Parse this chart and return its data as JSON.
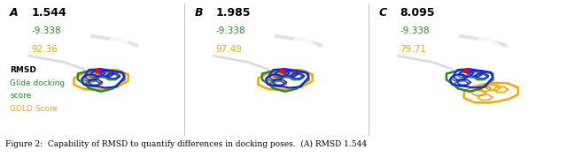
{
  "panels": [
    {
      "label": "A",
      "rmsd": "1.544",
      "glide_score": "-9.338",
      "gold_score": "92.36"
    },
    {
      "label": "B",
      "rmsd": "1.985",
      "glide_score": "-9.338",
      "gold_score": "97.49"
    },
    {
      "label": "C",
      "rmsd": "8.095",
      "glide_score": "-9.338",
      "gold_score": "79.71"
    }
  ],
  "caption": "Figure 2:  Capability of RMSD to quantify differences in docking poses.  (A) RMSD 1.544",
  "bg_color": "#ffffff",
  "panel_bg": "#dcdcdc",
  "label_fontsize": 9,
  "score_fontsize": 7.5,
  "caption_fontsize": 6.5,
  "rmsd_color": "#000000",
  "glide_color": "#228B22",
  "gold_color": "#FFA500",
  "figure_width": 6.4,
  "figure_height": 1.78,
  "divider_color": "#aaaaaa"
}
